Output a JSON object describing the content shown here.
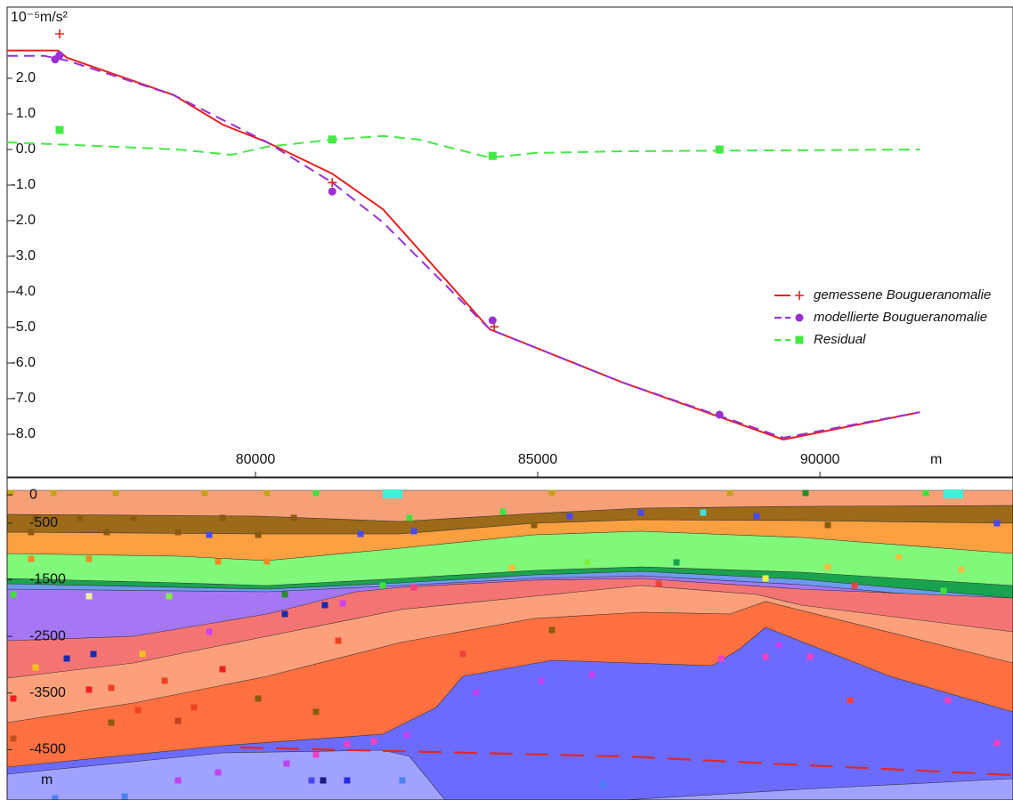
{
  "chart_data": [
    {
      "type": "line",
      "y_label": "10⁻⁵m/s²",
      "x_label": "m",
      "xlim": [
        75600,
        93420
      ],
      "xticks": [
        80000,
        85000,
        90000
      ],
      "ylim": [
        -9.2,
        4.0
      ],
      "yticks": [
        {
          "value": 2,
          "label": "2.0"
        },
        {
          "value": 1,
          "label": "1.0"
        },
        {
          "value": 0,
          "label": "0.0"
        },
        {
          "value": -1,
          "label": "-1.0"
        },
        {
          "value": -2,
          "label": "-2.0"
        },
        {
          "value": -3,
          "label": "-3.0"
        },
        {
          "value": -4,
          "label": "-4.0"
        },
        {
          "value": -5,
          "label": "-5.0"
        },
        {
          "value": -6,
          "label": "-6.0"
        },
        {
          "value": -7,
          "label": "-7.0"
        },
        {
          "value": -8,
          "label": "-8.0"
        }
      ],
      "legend": "right",
      "series": [
        {
          "name": "gemessene Bougueranomalie",
          "color": "#e8201e",
          "dash": false,
          "marker": "plus",
          "x": [
            75600,
            76500,
            76660,
            78550,
            79420,
            80210,
            81360,
            82260,
            84150,
            86510,
            89350,
            91770
          ],
          "values": [
            2.78,
            2.78,
            2.58,
            1.53,
            0.7,
            0.2,
            -0.68,
            -1.68,
            -5.05,
            -6.55,
            -8.15,
            -7.38
          ],
          "marker_x": [
            76530,
            81360,
            84230
          ],
          "marker_values": [
            3.25,
            -0.93,
            -4.98
          ]
        },
        {
          "name": "modellierte Bougueranomalie",
          "color": "#9b2fd3",
          "dash": true,
          "marker": "circle",
          "x": [
            75600,
            76260,
            76660,
            78550,
            80210,
            81360,
            82260,
            84150,
            86510,
            89350,
            91770
          ],
          "values": [
            2.63,
            2.63,
            2.5,
            1.53,
            0.2,
            -0.93,
            -2.05,
            -5.05,
            -6.55,
            -8.1,
            -7.38
          ],
          "marker_x": [
            76450,
            76530,
            81360,
            84200,
            88220
          ],
          "marker_values": [
            2.53,
            2.65,
            -1.18,
            -4.8,
            -7.45
          ]
        },
        {
          "name": "Residual",
          "color": "#44e844",
          "dash": true,
          "marker": "square",
          "x": [
            75600,
            76740,
            78630,
            79570,
            80210,
            81390,
            82260,
            82890,
            84150,
            84940,
            86510,
            91770
          ],
          "values": [
            0.2,
            0.13,
            0,
            -0.15,
            0.08,
            0.28,
            0.38,
            0.28,
            -0.23,
            -0.1,
            -0.05,
            0
          ],
          "marker_x": [
            76530,
            81360,
            84200,
            88220
          ],
          "marker_values": [
            0.55,
            0.28,
            -0.18,
            0
          ]
        }
      ]
    },
    {
      "type": "section",
      "y_label": "m",
      "ylim": [
        -5390,
        300
      ],
      "yticks": [
        0,
        -500,
        -1500,
        -2500,
        -3500,
        -4500
      ]
    }
  ]
}
